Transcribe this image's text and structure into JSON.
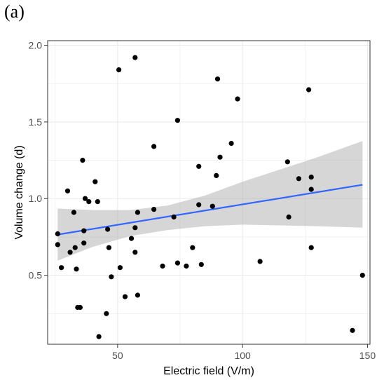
{
  "panel_label": "(a)",
  "chart_data": {
    "type": "scatter",
    "xlabel": "Electric field (V/m)",
    "ylabel": "Volume change (d)",
    "xlim": [
      22,
      151
    ],
    "ylim": [
      0.05,
      2.03
    ],
    "x_ticks": [
      50,
      100,
      150
    ],
    "y_ticks": [
      0.5,
      1.0,
      1.5,
      2.0
    ],
    "x_tick_labels": [
      "50",
      "100",
      "150"
    ],
    "y_tick_labels": [
      "0.5",
      "1.0",
      "1.5",
      "2.0"
    ],
    "grid": true,
    "colors": {
      "panel_bg": "#ffffff",
      "grid": "#ebebeb",
      "frame": "#333333",
      "points": "#000000",
      "fit_line": "#3366ff",
      "ribbon": "#999999"
    },
    "points": [
      {
        "x": 26.0,
        "y": 0.77
      },
      {
        "x": 26.0,
        "y": 0.7
      },
      {
        "x": 27.5,
        "y": 0.55
      },
      {
        "x": 30.0,
        "y": 1.05
      },
      {
        "x": 31.0,
        "y": 0.65
      },
      {
        "x": 32.5,
        "y": 0.91
      },
      {
        "x": 33.0,
        "y": 0.68
      },
      {
        "x": 33.5,
        "y": 0.54
      },
      {
        "x": 34.0,
        "y": 0.29
      },
      {
        "x": 35.0,
        "y": 0.29
      },
      {
        "x": 36.0,
        "y": 1.25
      },
      {
        "x": 36.5,
        "y": 0.79
      },
      {
        "x": 36.5,
        "y": 0.71
      },
      {
        "x": 37.0,
        "y": 1.0
      },
      {
        "x": 38.5,
        "y": 0.98
      },
      {
        "x": 41.0,
        "y": 1.11
      },
      {
        "x": 42.0,
        "y": 0.98
      },
      {
        "x": 42.5,
        "y": 0.1
      },
      {
        "x": 45.5,
        "y": 0.25
      },
      {
        "x": 46.0,
        "y": 0.8
      },
      {
        "x": 46.5,
        "y": 0.68
      },
      {
        "x": 47.5,
        "y": 0.49
      },
      {
        "x": 50.5,
        "y": 1.84
      },
      {
        "x": 51.0,
        "y": 0.55
      },
      {
        "x": 53.0,
        "y": 0.36
      },
      {
        "x": 55.5,
        "y": 0.74
      },
      {
        "x": 57.0,
        "y": 1.92
      },
      {
        "x": 57.0,
        "y": 0.81
      },
      {
        "x": 57.0,
        "y": 0.65
      },
      {
        "x": 58.0,
        "y": 0.91
      },
      {
        "x": 58.0,
        "y": 0.37
      },
      {
        "x": 64.5,
        "y": 1.34
      },
      {
        "x": 64.5,
        "y": 0.93
      },
      {
        "x": 68.0,
        "y": 0.56
      },
      {
        "x": 72.5,
        "y": 0.88
      },
      {
        "x": 74.0,
        "y": 1.51
      },
      {
        "x": 74.0,
        "y": 0.58
      },
      {
        "x": 77.5,
        "y": 0.56
      },
      {
        "x": 80.0,
        "y": 0.68
      },
      {
        "x": 82.5,
        "y": 1.21
      },
      {
        "x": 82.5,
        "y": 0.96
      },
      {
        "x": 83.5,
        "y": 0.57
      },
      {
        "x": 88.0,
        "y": 0.95
      },
      {
        "x": 89.5,
        "y": 1.15
      },
      {
        "x": 90.0,
        "y": 1.78
      },
      {
        "x": 91.0,
        "y": 1.27
      },
      {
        "x": 95.5,
        "y": 1.36
      },
      {
        "x": 98.0,
        "y": 1.65
      },
      {
        "x": 107.0,
        "y": 0.59
      },
      {
        "x": 118.0,
        "y": 1.24
      },
      {
        "x": 118.5,
        "y": 0.88
      },
      {
        "x": 122.5,
        "y": 1.13
      },
      {
        "x": 126.5,
        "y": 1.71
      },
      {
        "x": 127.5,
        "y": 1.14
      },
      {
        "x": 127.5,
        "y": 1.06
      },
      {
        "x": 127.5,
        "y": 0.68
      },
      {
        "x": 144.0,
        "y": 0.14
      },
      {
        "x": 148.0,
        "y": 0.5
      }
    ],
    "fit_line": {
      "x": [
        26,
        148
      ],
      "y": [
        0.765,
        1.09
      ]
    },
    "confidence_band": {
      "x": [
        26,
        40,
        55,
        70,
        85,
        100,
        115,
        130,
        148
      ],
      "upper": [
        0.935,
        0.925,
        0.925,
        0.955,
        1.02,
        1.11,
        1.19,
        1.27,
        1.375
      ],
      "lower": [
        0.595,
        0.685,
        0.755,
        0.795,
        0.82,
        0.83,
        0.825,
        0.82,
        0.81
      ]
    }
  }
}
